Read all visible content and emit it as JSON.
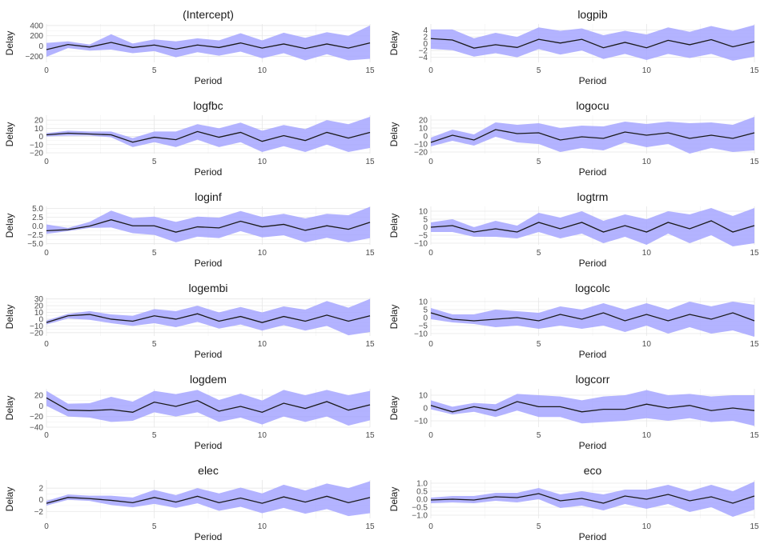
{
  "chart_data": [
    {
      "type": "line",
      "title": "(Intercept)",
      "xlabel": "Period",
      "ylabel": "Delay",
      "xlim": [
        0,
        15
      ],
      "ylim": [
        -320,
        430
      ],
      "yticks": [
        -200,
        0,
        200,
        400
      ],
      "yticklabels": [
        "−200",
        "0",
        "200",
        "400"
      ],
      "xticks": [
        0,
        5,
        10,
        15
      ],
      "x": [
        0,
        1,
        2,
        3,
        4,
        5,
        6,
        7,
        8,
        9,
        10,
        11,
        12,
        13,
        14,
        15
      ],
      "series": [
        {
          "values": [
            -70,
            30,
            -20,
            70,
            -30,
            20,
            -60,
            20,
            -30,
            60,
            -40,
            40,
            -50,
            40,
            -40,
            60
          ],
          "lower": [
            -210,
            -40,
            -90,
            -70,
            -140,
            -100,
            -220,
            -120,
            -190,
            -110,
            -240,
            -140,
            -280,
            -160,
            -280,
            -250
          ],
          "upper": [
            60,
            90,
            30,
            230,
            50,
            130,
            90,
            150,
            110,
            250,
            110,
            260,
            160,
            270,
            200,
            400
          ]
        }
      ]
    },
    {
      "type": "line",
      "title": "logpib",
      "xlabel": "Period",
      "ylabel": "Delay",
      "xlim": [
        0,
        15
      ],
      "ylim": [
        -5.5,
        5.8
      ],
      "yticks": [
        -4,
        -2,
        0,
        2,
        4
      ],
      "yticklabels": [
        "−4",
        "−2",
        "0",
        "2",
        "4"
      ],
      "xticks": [
        0,
        5,
        10,
        15
      ],
      "x": [
        0,
        1,
        2,
        3,
        4,
        5,
        6,
        7,
        8,
        9,
        10,
        11,
        12,
        13,
        14,
        15
      ],
      "series": [
        {
          "values": [
            1.5,
            1.1,
            -1.3,
            -0.3,
            -1.1,
            1.3,
            0.2,
            1.3,
            -1.2,
            0.4,
            -1.2,
            1.0,
            -0.3,
            1.2,
            -0.9,
            0.6
          ],
          "lower": [
            -1.5,
            -1.9,
            -3.8,
            -2.8,
            -4.0,
            -1.6,
            -3.2,
            -2.0,
            -4.5,
            -3.0,
            -4.8,
            -3.0,
            -4.2,
            -3.0,
            -5.0,
            -3.8
          ],
          "upper": [
            4.2,
            4.2,
            1.6,
            3.2,
            2.0,
            4.8,
            3.8,
            4.5,
            2.5,
            3.8,
            2.7,
            4.8,
            3.5,
            5.2,
            3.8,
            5.5
          ]
        }
      ]
    },
    {
      "type": "line",
      "title": "logfbc",
      "xlabel": "Period",
      "ylabel": "Delay",
      "xlim": [
        0,
        15
      ],
      "ylim": [
        -21,
        26
      ],
      "yticks": [
        -20,
        -10,
        0,
        10,
        20
      ],
      "yticklabels": [
        "−20",
        "−10",
        "0",
        "10",
        "20"
      ],
      "xticks": [
        0,
        5,
        10,
        15
      ],
      "x": [
        0,
        1,
        2,
        3,
        4,
        5,
        6,
        7,
        8,
        9,
        10,
        11,
        12,
        13,
        14,
        15
      ],
      "series": [
        {
          "values": [
            2,
            4,
            3,
            2,
            -7,
            -1,
            -4,
            6,
            -1,
            5,
            -6,
            1,
            -5,
            5,
            -2,
            5
          ],
          "lower": [
            0,
            1,
            1,
            -1,
            -13,
            -7,
            -13,
            -4,
            -13,
            -7,
            -19,
            -12,
            -19,
            -10,
            -19,
            -14
          ],
          "upper": [
            4,
            7,
            6,
            6,
            -2,
            6,
            6,
            15,
            10,
            17,
            7,
            14,
            9,
            20,
            15,
            24
          ]
        }
      ]
    },
    {
      "type": "line",
      "title": "logocu",
      "xlabel": "Period",
      "ylabel": "Delay",
      "xlim": [
        0,
        15
      ],
      "ylim": [
        -22,
        26
      ],
      "yticks": [
        -20,
        -10,
        0,
        10,
        20
      ],
      "yticklabels": [
        "−20",
        "−10",
        "0",
        "10",
        "20"
      ],
      "xticks": [
        0,
        5,
        10,
        15
      ],
      "x": [
        0,
        1,
        2,
        3,
        4,
        5,
        6,
        7,
        8,
        9,
        10,
        11,
        12,
        13,
        14,
        15
      ],
      "series": [
        {
          "values": [
            -8,
            1,
            -5,
            8,
            3,
            4,
            -5,
            -1,
            -3,
            5,
            1,
            4,
            -3,
            1,
            -3,
            4
          ],
          "lower": [
            -13,
            -6,
            -12,
            -1,
            -8,
            -10,
            -20,
            -15,
            -18,
            -8,
            -14,
            -10,
            -22,
            -15,
            -20,
            -18
          ],
          "upper": [
            -2,
            8,
            2,
            17,
            14,
            16,
            10,
            13,
            12,
            18,
            15,
            18,
            16,
            17,
            14,
            24
          ]
        }
      ]
    },
    {
      "type": "line",
      "title": "loginf",
      "xlabel": "Period",
      "ylabel": "Delay",
      "xlim": [
        0,
        15
      ],
      "ylim": [
        -5.3,
        5.6
      ],
      "yticks": [
        -5,
        -2.5,
        0,
        2.5,
        5
      ],
      "yticklabels": [
        "−5.0",
        "−2.5",
        "0.0",
        "2.5",
        "5.0"
      ],
      "xticks": [
        0,
        5,
        10,
        15
      ],
      "x": [
        0,
        1,
        2,
        3,
        4,
        5,
        6,
        7,
        8,
        9,
        10,
        11,
        12,
        13,
        14,
        15
      ],
      "series": [
        {
          "values": [
            -1.3,
            -1.0,
            0.0,
            1.8,
            0.1,
            0.1,
            -1.7,
            -0.2,
            -0.5,
            1.4,
            -0.2,
            0.5,
            -1.2,
            0.1,
            -0.9,
            1.1
          ],
          "lower": [
            -2.2,
            -1.4,
            -0.5,
            -0.4,
            -2.0,
            -2.5,
            -4.6,
            -3.0,
            -3.4,
            -1.4,
            -3.2,
            -2.6,
            -4.6,
            -3.3,
            -4.6,
            -3.4
          ],
          "upper": [
            0.5,
            -0.5,
            1.2,
            4.4,
            2.3,
            2.7,
            1.2,
            2.7,
            2.4,
            4.3,
            2.6,
            3.5,
            2.2,
            3.5,
            3.1,
            5.5
          ]
        }
      ]
    },
    {
      "type": "line",
      "title": "logtrm",
      "xlabel": "Period",
      "ylabel": "Delay",
      "xlim": [
        0,
        15
      ],
      "ylim": [
        -11,
        13
      ],
      "yticks": [
        -10,
        -5,
        0,
        5,
        10
      ],
      "yticklabels": [
        "−10",
        "−5",
        "0",
        "5",
        "10"
      ],
      "xticks": [
        0,
        5,
        10,
        15
      ],
      "x": [
        0,
        1,
        2,
        3,
        4,
        5,
        6,
        7,
        8,
        9,
        10,
        11,
        12,
        13,
        14,
        15
      ],
      "series": [
        {
          "values": [
            0,
            1,
            -3,
            -1,
            -3,
            3,
            -1,
            3,
            -3,
            1,
            -3,
            3,
            -1,
            4,
            -3,
            1
          ],
          "lower": [
            -3,
            -3,
            -6,
            -6,
            -7,
            -3,
            -7,
            -4,
            -10,
            -6,
            -11,
            -4,
            -10,
            -5,
            -12,
            -10
          ],
          "upper": [
            3,
            5,
            0,
            4,
            1,
            9,
            6,
            10,
            4,
            8,
            5,
            10,
            8,
            12,
            7,
            12
          ]
        }
      ]
    },
    {
      "type": "line",
      "title": "logembi",
      "xlabel": "Period",
      "ylabel": "Delay",
      "xlim": [
        0,
        15
      ],
      "ylim": [
        -25,
        32
      ],
      "yticks": [
        -20,
        -10,
        0,
        10,
        20,
        30
      ],
      "yticklabels": [
        "−20",
        "−10",
        "0",
        "10",
        "20",
        "30"
      ],
      "xticks": [
        0,
        5,
        10,
        15
      ],
      "x": [
        0,
        1,
        2,
        3,
        4,
        5,
        6,
        7,
        8,
        9,
        10,
        11,
        12,
        13,
        14,
        15
      ],
      "series": [
        {
          "values": [
            -5,
            5,
            7,
            0,
            -3,
            5,
            0,
            8,
            -3,
            4,
            -5,
            4,
            -3,
            6,
            -3,
            5
          ],
          "lower": [
            -8,
            1,
            -1,
            -6,
            -10,
            -6,
            -12,
            -4,
            -14,
            -8,
            -17,
            -9,
            -17,
            -10,
            -24,
            -19
          ],
          "upper": [
            -2,
            8,
            12,
            7,
            5,
            15,
            12,
            20,
            10,
            18,
            10,
            19,
            14,
            27,
            17,
            30
          ]
        }
      ]
    },
    {
      "type": "line",
      "title": "logcolc",
      "xlabel": "Period",
      "ylabel": "Delay",
      "xlim": [
        0,
        15
      ],
      "ylim": [
        -11.5,
        12.5
      ],
      "yticks": [
        -10,
        -5,
        0,
        5,
        10
      ],
      "yticklabels": [
        "−10",
        "−5",
        "0",
        "5",
        "10"
      ],
      "xticks": [
        0,
        5,
        10,
        15
      ],
      "x": [
        0,
        1,
        2,
        3,
        4,
        5,
        6,
        7,
        8,
        9,
        10,
        11,
        12,
        13,
        14,
        15
      ],
      "series": [
        {
          "values": [
            3,
            -1,
            -2,
            -1,
            0,
            -2,
            2,
            -1,
            3,
            -2,
            2,
            -2,
            2,
            -1,
            3,
            -2
          ],
          "lower": [
            -1,
            -3,
            -4,
            -6,
            -5,
            -7,
            -5,
            -7,
            -5,
            -9,
            -5,
            -10,
            -6,
            -10,
            -8,
            -12
          ],
          "upper": [
            6,
            2,
            2,
            5,
            4,
            3,
            7,
            5,
            9,
            5,
            9,
            5,
            10,
            7,
            10,
            8
          ]
        }
      ]
    },
    {
      "type": "line",
      "title": "logdem",
      "xlabel": "Period",
      "ylabel": "Delay",
      "xlim": [
        0,
        15
      ],
      "ylim": [
        -40,
        32
      ],
      "yticks": [
        -40,
        -20,
        0,
        20
      ],
      "yticklabels": [
        "−40",
        "−20",
        "0",
        "20"
      ],
      "xticks": [
        0,
        5,
        10,
        15
      ],
      "x": [
        0,
        1,
        2,
        3,
        4,
        5,
        6,
        7,
        8,
        9,
        10,
        11,
        12,
        13,
        14,
        15
      ],
      "series": [
        {
          "values": [
            15,
            -8,
            -9,
            -7,
            -12,
            7,
            -1,
            10,
            -10,
            -1,
            -12,
            5,
            -5,
            8,
            -8,
            2
          ],
          "lower": [
            0,
            -20,
            -22,
            -30,
            -28,
            -12,
            -20,
            -12,
            -30,
            -22,
            -35,
            -20,
            -30,
            -20,
            -37,
            -27
          ],
          "upper": [
            28,
            4,
            5,
            17,
            8,
            28,
            22,
            30,
            11,
            23,
            10,
            30,
            20,
            30,
            20,
            28
          ]
        }
      ]
    },
    {
      "type": "line",
      "title": "logcorr",
      "xlabel": "Period",
      "ylabel": "Delay",
      "xlim": [
        0,
        15
      ],
      "ylim": [
        -15,
        15
      ],
      "yticks": [
        -10,
        0,
        10
      ],
      "yticklabels": [
        "−10",
        "0",
        "10"
      ],
      "xticks": [
        0,
        5,
        10,
        15
      ],
      "x": [
        0,
        1,
        2,
        3,
        4,
        5,
        6,
        7,
        8,
        9,
        10,
        11,
        12,
        13,
        14,
        15
      ],
      "series": [
        {
          "values": [
            2,
            -3,
            1,
            -2,
            5,
            1,
            1,
            -3,
            -1,
            -1,
            3,
            0,
            2,
            -2,
            0,
            -2
          ],
          "lower": [
            -1,
            -5,
            -3,
            -7,
            -2,
            -7,
            -7,
            -12,
            -11,
            -10,
            -8,
            -10,
            -8,
            -11,
            -10,
            -14
          ],
          "upper": [
            6,
            1,
            4,
            3,
            11,
            10,
            9,
            6,
            9,
            10,
            14,
            10,
            11,
            9,
            10,
            10
          ]
        }
      ]
    },
    {
      "type": "line",
      "title": "elec",
      "xlabel": "Period",
      "ylabel": "Delay",
      "xlim": [
        0,
        15
      ],
      "ylim": [
        -3.2,
        3.4
      ],
      "yticks": [
        -2,
        0,
        2
      ],
      "yticklabels": [
        "−2",
        "0",
        "2"
      ],
      "xticks": [
        0,
        5,
        10,
        15
      ],
      "x": [
        0,
        1,
        2,
        3,
        4,
        5,
        6,
        7,
        8,
        9,
        10,
        11,
        12,
        13,
        14,
        15
      ],
      "series": [
        {
          "values": [
            -0.6,
            0.4,
            0.2,
            -0.1,
            -0.5,
            0.4,
            -0.4,
            0.6,
            -0.5,
            0.3,
            -0.6,
            0.5,
            -0.4,
            0.6,
            -0.5,
            0.4
          ],
          "lower": [
            -1.0,
            0.0,
            -0.2,
            -0.9,
            -1.3,
            -0.7,
            -1.4,
            -0.6,
            -1.9,
            -1.2,
            -2.3,
            -1.4,
            -2.4,
            -1.6,
            -2.8,
            -2.3
          ],
          "upper": [
            -0.2,
            0.9,
            0.7,
            0.7,
            0.4,
            1.7,
            0.8,
            2.0,
            1.1,
            2.1,
            1.1,
            2.6,
            1.6,
            2.8,
            2.0,
            3.2
          ]
        }
      ]
    },
    {
      "type": "line",
      "title": "eco",
      "xlabel": "Period",
      "ylabel": "Delay",
      "xlim": [
        0,
        15
      ],
      "ylim": [
        -1.2,
        1.2
      ],
      "yticks": [
        -1,
        -0.5,
        0,
        0.5,
        1
      ],
      "yticklabels": [
        "−1.0",
        "−0.5",
        "0.0",
        "0.5",
        "1.0"
      ],
      "xticks": [
        0,
        5,
        10,
        15
      ],
      "x": [
        0,
        1,
        2,
        3,
        4,
        5,
        6,
        7,
        8,
        9,
        10,
        11,
        12,
        13,
        14,
        15
      ],
      "series": [
        {
          "values": [
            -0.05,
            0.0,
            -0.05,
            0.15,
            0.1,
            0.35,
            -0.1,
            0.05,
            -0.25,
            0.2,
            0.0,
            0.3,
            -0.1,
            0.15,
            -0.25,
            0.2
          ],
          "lower": [
            -0.25,
            -0.2,
            -0.25,
            -0.1,
            -0.2,
            0.0,
            -0.55,
            -0.4,
            -0.7,
            -0.3,
            -0.6,
            -0.3,
            -0.8,
            -0.5,
            -1.1,
            -0.65
          ],
          "upper": [
            0.1,
            0.2,
            0.2,
            0.4,
            0.4,
            0.7,
            0.3,
            0.5,
            0.3,
            0.6,
            0.6,
            0.9,
            0.5,
            0.9,
            0.5,
            1.1
          ]
        }
      ]
    }
  ],
  "colors": {
    "band": "#a6a6ff",
    "line": "#1a1a1a",
    "grid": "#e6e6e6",
    "gridMinor": "#f2f2f2",
    "axisText": "#4d4d4d"
  }
}
